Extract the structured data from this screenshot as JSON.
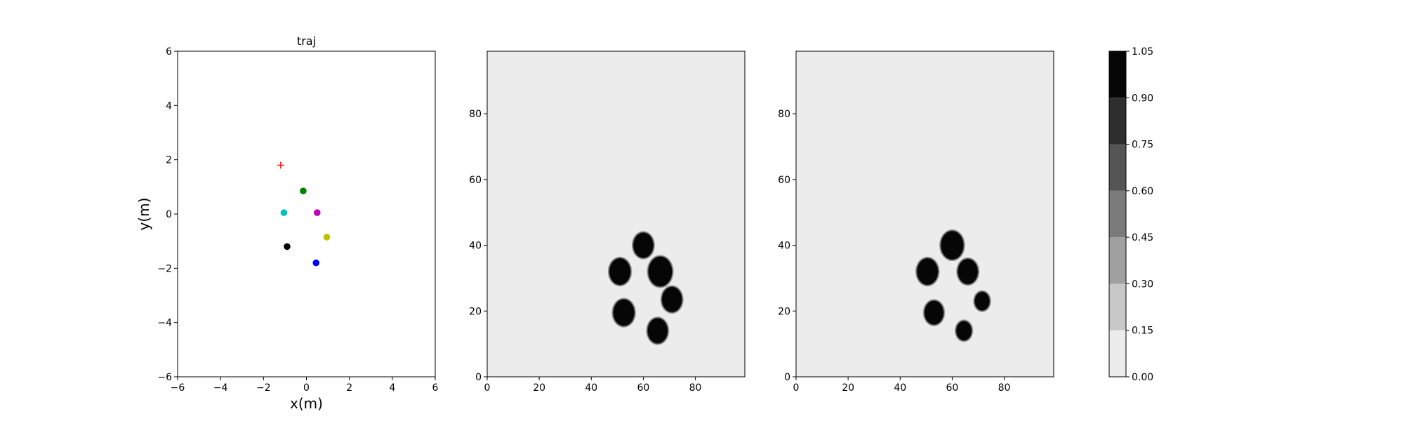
{
  "chart_data": [
    {
      "type": "scatter",
      "title": "traj",
      "xlabel": "x(m)",
      "ylabel": "y(m)",
      "xlim": [
        -6,
        6
      ],
      "ylim": [
        -6,
        6
      ],
      "xticks": [
        "−6",
        "−4",
        "−2",
        "0",
        "2",
        "4",
        "6"
      ],
      "yticks": [
        "−6",
        "−4",
        "−2",
        "0",
        "2",
        "4",
        "6"
      ],
      "grid": false,
      "goal_marker": {
        "x": -1.2,
        "y": 1.8,
        "color": "#ff0000",
        "symbol": "+"
      },
      "points": [
        {
          "x": -0.15,
          "y": 0.85,
          "color": "#008000"
        },
        {
          "x": -1.05,
          "y": 0.05,
          "color": "#00bfbf"
        },
        {
          "x": 0.5,
          "y": 0.05,
          "color": "#bf00bf"
        },
        {
          "x": 0.95,
          "y": -0.85,
          "color": "#bfbf00"
        },
        {
          "x": -0.9,
          "y": -1.2,
          "color": "#000000"
        },
        {
          "x": 0.45,
          "y": -1.8,
          "color": "#0000ff"
        }
      ]
    },
    {
      "type": "heatmap",
      "title": "",
      "xlim": [
        0,
        99
      ],
      "ylim": [
        0,
        99
      ],
      "xticks": [
        "0",
        "20",
        "40",
        "60",
        "80"
      ],
      "yticks": [
        "0",
        "20",
        "40",
        "60",
        "80"
      ],
      "background_value": 0.05,
      "blobs": [
        {
          "x": 60,
          "y": 40,
          "r": 3.8,
          "value": 1.0
        },
        {
          "x": 51,
          "y": 32,
          "r": 4.0,
          "value": 1.0
        },
        {
          "x": 66.5,
          "y": 32,
          "r": 4.5,
          "value": 1.0
        },
        {
          "x": 71,
          "y": 23.5,
          "r": 3.8,
          "value": 1.0
        },
        {
          "x": 52.5,
          "y": 19.5,
          "r": 4.0,
          "value": 1.0
        },
        {
          "x": 65.5,
          "y": 14,
          "r": 3.8,
          "value": 1.0
        }
      ]
    },
    {
      "type": "heatmap",
      "title": "",
      "xlim": [
        0,
        99
      ],
      "ylim": [
        0,
        99
      ],
      "xticks": [
        "0",
        "20",
        "40",
        "60",
        "80"
      ],
      "yticks": [
        "0",
        "20",
        "40",
        "60",
        "80"
      ],
      "background_value": 0.05,
      "blobs": [
        {
          "x": 60,
          "y": 40,
          "r": 4.3,
          "value": 1.0
        },
        {
          "x": 50.5,
          "y": 32,
          "r": 4.0,
          "value": 1.0
        },
        {
          "x": 66,
          "y": 32,
          "r": 3.8,
          "value": 1.0
        },
        {
          "x": 71.5,
          "y": 23,
          "r": 2.8,
          "value": 1.0
        },
        {
          "x": 53,
          "y": 19.5,
          "r": 3.6,
          "value": 1.0
        },
        {
          "x": 64.5,
          "y": 14,
          "r": 2.9,
          "value": 1.0
        }
      ]
    }
  ],
  "colorbar": {
    "levels": [
      0.0,
      0.15,
      0.3,
      0.45,
      0.6,
      0.75,
      0.9,
      1.05
    ],
    "tick_labels": [
      "0.00",
      "0.15",
      "0.30",
      "0.45",
      "0.60",
      "0.75",
      "0.90",
      "1.05"
    ],
    "colors": [
      "#ececec",
      "#c8c8c8",
      "#a0a0a0",
      "#7b7b7b",
      "#555555",
      "#2e2e2e",
      "#060606"
    ]
  }
}
